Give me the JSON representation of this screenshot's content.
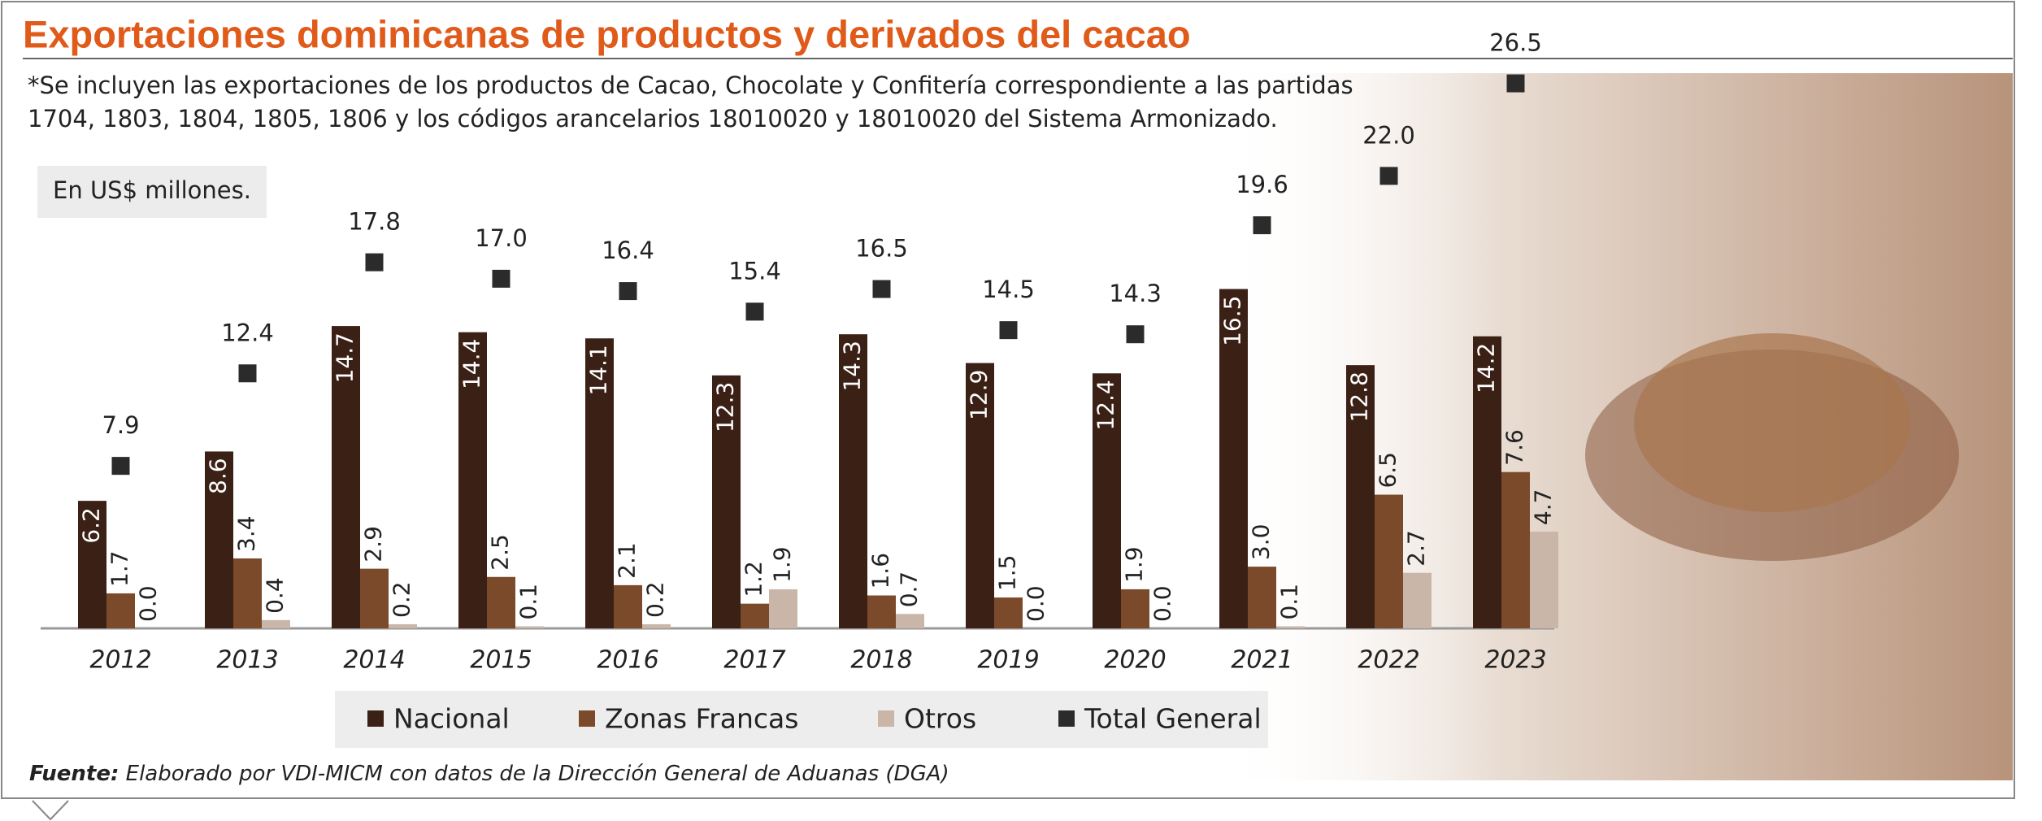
{
  "chart_data": {
    "type": "bar",
    "title": "Exportaciones dominicanas de productos y derivados del cacao",
    "subtitle": [
      "*Se incluyen las exportaciones de los productos de Cacao, Chocolate y Confitería correspondiente a las partidas",
      "1704, 1803, 1804, 1805, 1806 y los códigos arancelarios 18010020 y 18010020 del Sistema Armonizado."
    ],
    "unit_label": "En US$ millones.",
    "categories": [
      "2012",
      "2013",
      "2014",
      "2015",
      "2016",
      "2017",
      "2018",
      "2019",
      "2020",
      "2021",
      "2022",
      "2023"
    ],
    "series": [
      {
        "name": "Nacional",
        "color": "#3b2016",
        "mark": "bar",
        "values": [
          6.2,
          8.6,
          14.7,
          14.4,
          14.1,
          12.3,
          14.3,
          12.9,
          12.4,
          16.5,
          12.8,
          14.2
        ],
        "value_labels": [
          "6.2",
          "8.6",
          "14.7",
          "14.4",
          "14.1",
          "12.3",
          "14.3",
          "12.9",
          "12.4",
          "16.5",
          "12.8",
          "14.2"
        ]
      },
      {
        "name": "Zonas Francas",
        "color": "#7b4a2a",
        "mark": "bar",
        "values": [
          1.7,
          3.4,
          2.9,
          2.5,
          2.1,
          1.2,
          1.6,
          1.5,
          1.9,
          3.0,
          6.5,
          7.6
        ],
        "value_labels": [
          "1.7",
          "3.4",
          "2.9",
          "2.5",
          "2.1",
          "1.2",
          "1.6",
          "1.5",
          "1.9",
          "3.0",
          "6.5",
          "7.6"
        ]
      },
      {
        "name": "Otros",
        "color": "#c9b6a8",
        "mark": "bar",
        "values": [
          0.0,
          0.4,
          0.2,
          0.1,
          0.2,
          1.9,
          0.7,
          0.0,
          0.0,
          0.1,
          2.7,
          4.7
        ],
        "value_labels": [
          "0.0",
          "0.4",
          "0.2",
          "0.1",
          "0.2",
          "1.9",
          "0.7",
          "0.0",
          "0.0",
          "0.1",
          "2.7",
          "4.7"
        ]
      },
      {
        "name": "Total General",
        "color": "#2b2b2b",
        "mark": "square",
        "values": [
          7.9,
          12.4,
          17.8,
          17.0,
          16.4,
          15.4,
          16.5,
          14.5,
          14.3,
          19.6,
          22.0,
          26.5
        ],
        "value_labels": [
          "7.9",
          "12.4",
          "17.8",
          "17.0",
          "16.4",
          "15.4",
          "16.5",
          "14.5",
          "14.3",
          "19.6",
          "22.0",
          "26.5"
        ]
      }
    ],
    "source": {
      "label": "Fuente:",
      "text": "Elaborado por VDI-MICM con datos de la Dirección General de Aduanas (DGA)"
    }
  }
}
